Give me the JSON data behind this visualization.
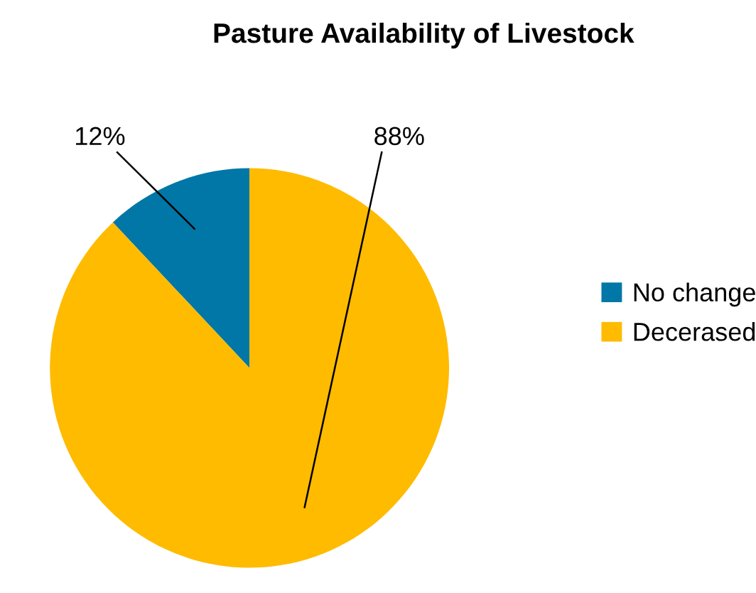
{
  "chart_data": {
    "type": "pie",
    "title": "Pasture Availability of Livestock",
    "categories": [
      "No change",
      "Decerased"
    ],
    "values": [
      12,
      88
    ],
    "colors": [
      "#0077a6",
      "#ffbb00"
    ],
    "value_labels": [
      "12%",
      "88%"
    ],
    "legend": "right"
  }
}
